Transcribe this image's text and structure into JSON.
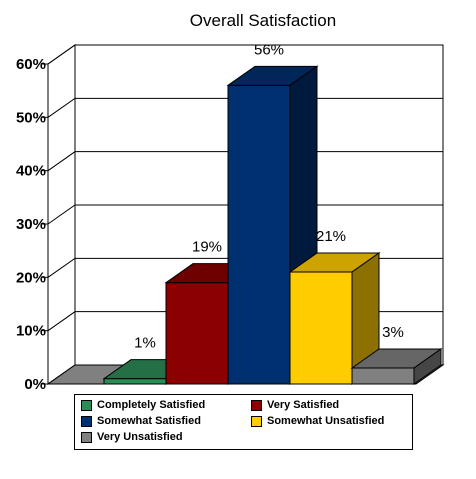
{
  "chart_data": {
    "type": "bar",
    "title": "Overall Satisfaction",
    "xlabel": "",
    "ylabel": "",
    "ylim": [
      0,
      60
    ],
    "y_ticks": [
      "0%",
      "10%",
      "20%",
      "30%",
      "40%",
      "50%",
      "60%"
    ],
    "grid": true,
    "legend_position": "bottom",
    "series": [
      {
        "name": "Completely Satisfied",
        "value": 1,
        "label": "1%",
        "color": "#2e8b57"
      },
      {
        "name": "Very Satisfied",
        "value": 19,
        "label": "19%",
        "color": "#8b0000"
      },
      {
        "name": "Somewhat Satisfied",
        "value": 56,
        "label": "56%",
        "color": "#003070"
      },
      {
        "name": "Somewhat Unsatisfied",
        "value": 21,
        "label": "21%",
        "color": "#ffcc00"
      },
      {
        "name": "Very Unsatisfied",
        "value": 3,
        "label": "3%",
        "color": "#808080"
      }
    ]
  }
}
